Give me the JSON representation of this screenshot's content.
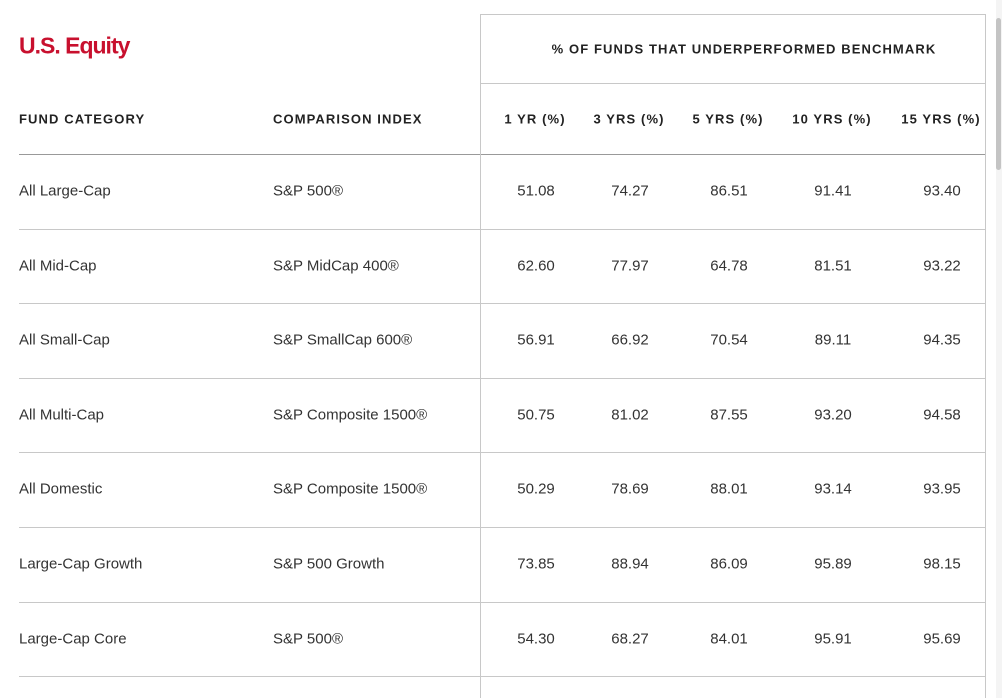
{
  "title": "U.S. Equity",
  "group_header": "% OF FUNDS THAT UNDERPERFORMED BENCHMARK",
  "headers": [
    "FUND CATEGORY",
    "COMPARISON INDEX",
    "1 YR (%)",
    "3 YRS (%)",
    "5 YRS (%)",
    "10 YRS (%)",
    "15 YRS (%)"
  ],
  "rows": [
    [
      "All Large-Cap",
      "S&P 500®",
      "51.08",
      "74.27",
      "86.51",
      "91.41",
      "93.40"
    ],
    [
      "All Mid-Cap",
      "S&P MidCap 400®",
      "62.60",
      "77.97",
      "64.78",
      "81.51",
      "93.22"
    ],
    [
      "All Small-Cap",
      "S&P SmallCap 600®",
      "56.91",
      "66.92",
      "70.54",
      "89.11",
      "94.35"
    ],
    [
      "All Multi-Cap",
      "S&P Composite 1500®",
      "50.75",
      "81.02",
      "87.55",
      "93.20",
      "94.58"
    ],
    [
      "All Domestic",
      "S&P Composite 1500®",
      "50.29",
      "78.69",
      "88.01",
      "93.14",
      "93.95"
    ],
    [
      "Large-Cap Growth",
      "S&P 500 Growth",
      "73.85",
      "88.94",
      "86.09",
      "95.89",
      "98.15"
    ],
    [
      "Large-Cap Core",
      "S&P 500®",
      "54.30",
      "68.27",
      "84.01",
      "95.91",
      "95.69"
    ]
  ]
}
